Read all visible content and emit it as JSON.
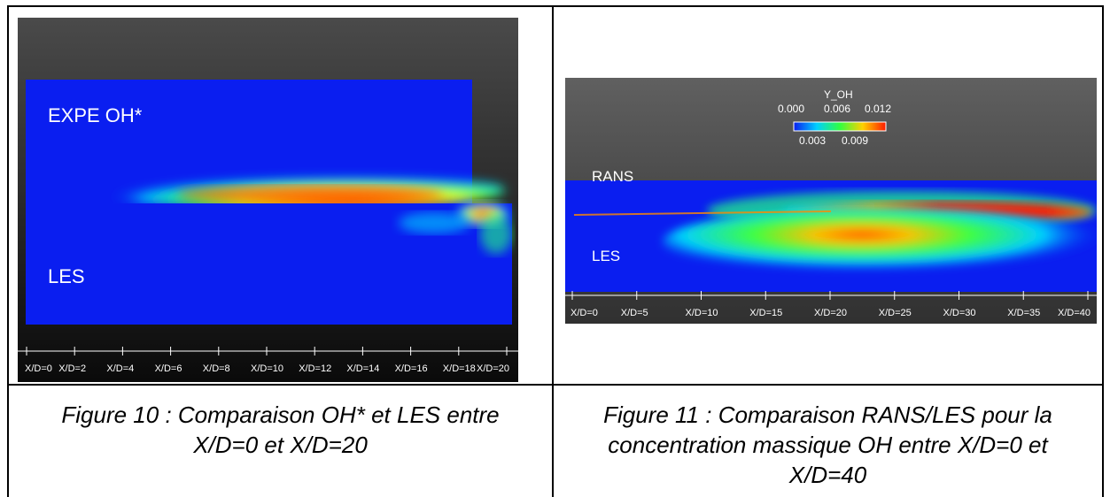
{
  "figure10": {
    "label_top": "EXPE OH*",
    "label_bottom": "LES",
    "ticks": [
      "X/D=0",
      "X/D=2",
      "X/D=4",
      "X/D=6",
      "X/D=8",
      "X/D=10",
      "X/D=12",
      "X/D=14",
      "X/D=16",
      "X/D=18",
      "X/D=20"
    ],
    "caption_line1": "Figure 10 : Comparaison OH* et LES entre",
    "caption_line2": "X/D=0 et X/D=20"
  },
  "figure11": {
    "colorbar_title": "Y_OH",
    "colorbar_top_labels": [
      "0.000",
      "0.006",
      "0.012"
    ],
    "colorbar_bottom_labels": [
      "0.003",
      "0.009"
    ],
    "label_top": "RANS",
    "label_bottom": "LES",
    "ticks": [
      "X/D=0",
      "X/D=5",
      "X/D=10",
      "X/D=15",
      "X/D=20",
      "X/D=25",
      "X/D=30",
      "X/D=35",
      "X/D=40"
    ],
    "caption_line1": "Figure 11 : Comparaison RANS/LES pour la",
    "caption_line2": "concentration massique OH entre X/D=0 et",
    "caption_line3": "X/D=40"
  },
  "colors": {
    "field_blue": "#0a1ef0",
    "border": "#000000"
  }
}
